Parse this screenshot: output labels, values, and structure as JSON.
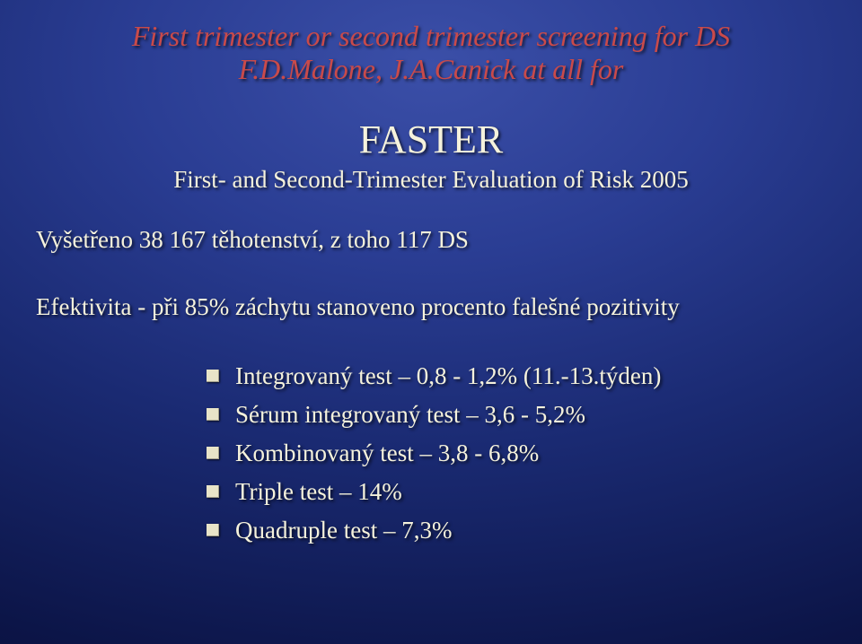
{
  "colors": {
    "title_color": "#c94a4a",
    "body_text_color": "#f5f2dc",
    "bullet_square_color": "#e8e4c8",
    "bg_center": "#3b4fa8",
    "bg_edge": "#060b30"
  },
  "typography": {
    "font_family": "Times New Roman",
    "title_fontsize_pt": 32,
    "title_style": "italic",
    "faster_fontsize_pt": 44,
    "body_fontsize_pt": 27
  },
  "title": {
    "line1": "First trimester or second trimester screening for DS",
    "line2": "F.D.Malone, J.A.Canick at all for"
  },
  "faster_label": "FASTER",
  "subtitle": "First- and Second-Trimester Evaluation of Risk 2005",
  "body_line1": "Vyšetřeno 38 167 těhotenství, z toho 117 DS",
  "body_line2": "Efektivita - při 85% záchytu  stanoveno procento falešné pozitivity",
  "bullets": [
    "Integrovaný test – 0,8 - 1,2%  (11.-13.týden)",
    "Sérum integrovaný test – 3,6 - 5,2%",
    "Kombinovaný test – 3,8 - 6,8%",
    "Triple test – 14%",
    "Quadruple test – 7,3%"
  ]
}
